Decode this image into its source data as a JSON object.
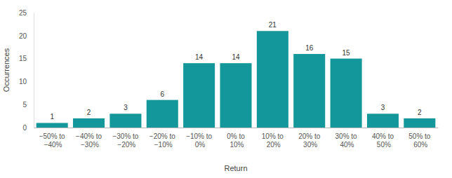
{
  "chart_data": {
    "type": "bar",
    "categories": [
      "−50% to −40%",
      "−40% to −30%",
      "−30% to −20%",
      "−20% to −10%",
      "−10% to 0%",
      "0% to 10%",
      "10% to 20%",
      "20% to 30%",
      "30% to 40%",
      "40% to 50%",
      "50% to 60%"
    ],
    "values": [
      1,
      2,
      3,
      6,
      14,
      14,
      21,
      16,
      15,
      3,
      2
    ],
    "color": "#14979b",
    "x_label": "Return",
    "y_label": "Occurrences",
    "ylim": [
      0,
      25
    ],
    "yticks": [
      0,
      5,
      10,
      15,
      20,
      25
    ],
    "grid": false,
    "data_labels": true
  }
}
